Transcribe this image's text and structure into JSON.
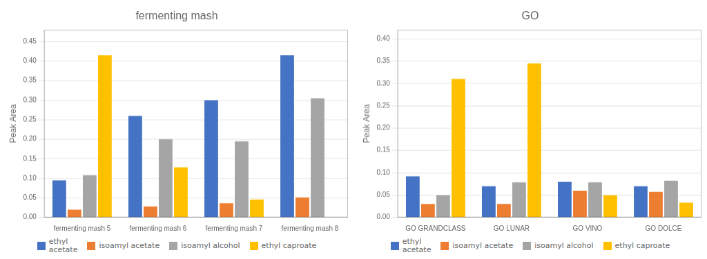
{
  "chart_data": [
    {
      "type": "bar",
      "title": "fermenting mash",
      "y_label": "Peak Area",
      "categories": [
        "fermenting mash 5",
        "fermenting mash 6",
        "fermenting mash 7",
        "fermenting mash 8"
      ],
      "series": [
        {
          "name": "ethyl\nacetate",
          "color": "#4472C4",
          "values": [
            0.095,
            0.26,
            0.3,
            0.415
          ]
        },
        {
          "name": "isoamyl acetate",
          "color": "#ED7D31",
          "values": [
            0.02,
            0.028,
            0.036,
            0.051
          ]
        },
        {
          "name": "isoamyl alcohol",
          "color": "#A5A5A5",
          "values": [
            0.108,
            0.2,
            0.195,
            0.305
          ]
        },
        {
          "name": "ethyl caproate",
          "color": "#FFC000",
          "values": [
            0.415,
            0.128,
            0.046,
            0.0
          ]
        }
      ],
      "ylim": [
        0,
        0.48
      ],
      "yticks": [
        {
          "value": 0,
          "label": "0.00"
        },
        0.05,
        {
          "value": 0.1,
          "label": "0.10"
        },
        0.15,
        {
          "value": 0.2,
          "label": "0.20"
        },
        0.25,
        {
          "value": 0.3,
          "label": "0.30"
        },
        0.35,
        {
          "value": 0.4,
          "label": "0.40"
        },
        0.45
      ],
      "grid": true,
      "legend": "bottom"
    },
    {
      "type": "bar",
      "title": "GO",
      "y_label": "Peak Area",
      "categories": [
        "GO GRANDCLASS",
        "GO LUNAR",
        "GO VINO",
        "GO DOLCE"
      ],
      "series": [
        {
          "name": "ethyl\nacetate",
          "color": "#4472C4",
          "values": [
            0.092,
            0.07,
            0.08,
            0.07
          ]
        },
        {
          "name": "isoamyl acetate",
          "color": "#ED7D31",
          "values": [
            0.03,
            0.03,
            0.06,
            0.057
          ]
        },
        {
          "name": "isoamyl alcohol",
          "color": "#A5A5A5",
          "values": [
            0.05,
            0.079,
            0.079,
            0.082
          ]
        },
        {
          "name": "ethyl caproate",
          "color": "#FFC000",
          "values": [
            0.31,
            0.345,
            0.05,
            0.033
          ]
        }
      ],
      "ylim": [
        0,
        0.42
      ],
      "yticks": [
        {
          "value": 0,
          "label": "0.00"
        },
        0.05,
        {
          "value": 0.1,
          "label": "0.10"
        },
        0.15,
        {
          "value": 0.2,
          "label": "0.20"
        },
        0.25,
        {
          "value": 0.3,
          "label": "0.30"
        },
        0.35,
        {
          "value": 0.4,
          "label": "0.40"
        }
      ],
      "grid": true,
      "legend": "bottom"
    }
  ]
}
